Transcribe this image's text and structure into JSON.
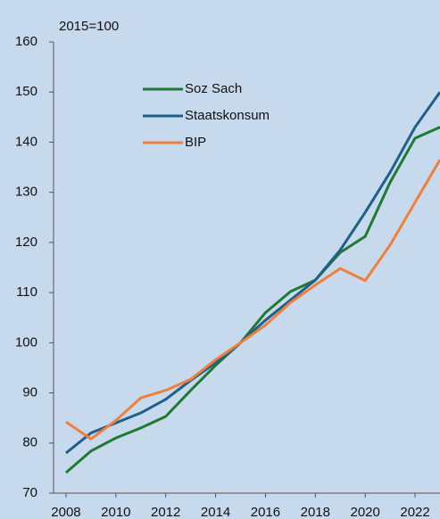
{
  "chart_data": {
    "type": "line",
    "y_label": "2015=100",
    "x": [
      2008,
      2009,
      2010,
      2011,
      2012,
      2013,
      2014,
      2015,
      2016,
      2017,
      2018,
      2019,
      2020,
      2021,
      2022,
      2023
    ],
    "series": [
      {
        "name": "Soz Sach",
        "color": "#1e7a32",
        "values": [
          74.1,
          78.4,
          81,
          83,
          85.3,
          90.5,
          95.5,
          100,
          106,
          110.2,
          112.5,
          118,
          121.2,
          132,
          140.8,
          143
        ]
      },
      {
        "name": "Staatskonsum",
        "color": "#1f5f8b",
        "values": [
          78,
          82,
          84,
          86,
          88.7,
          92.5,
          96,
          100,
          104.5,
          108.5,
          112.5,
          118.5,
          126,
          134,
          143,
          150
        ]
      },
      {
        "name": "BIP",
        "color": "#f07f3c",
        "values": [
          84.2,
          80.8,
          84.5,
          89,
          90.5,
          92.7,
          96.6,
          100,
          103.5,
          108,
          111.5,
          114.8,
          112.4,
          119.5,
          128,
          136.5
        ]
      }
    ],
    "xlim": [
      2007.5,
      2023
    ],
    "xticks": [
      2008,
      2010,
      2012,
      2014,
      2016,
      2018,
      2020,
      2022
    ],
    "ylim": [
      70,
      160
    ],
    "yticks": [
      70,
      80,
      90,
      100,
      110,
      120,
      130,
      140,
      150,
      160
    ],
    "grid": false,
    "legend": "upper-left"
  }
}
